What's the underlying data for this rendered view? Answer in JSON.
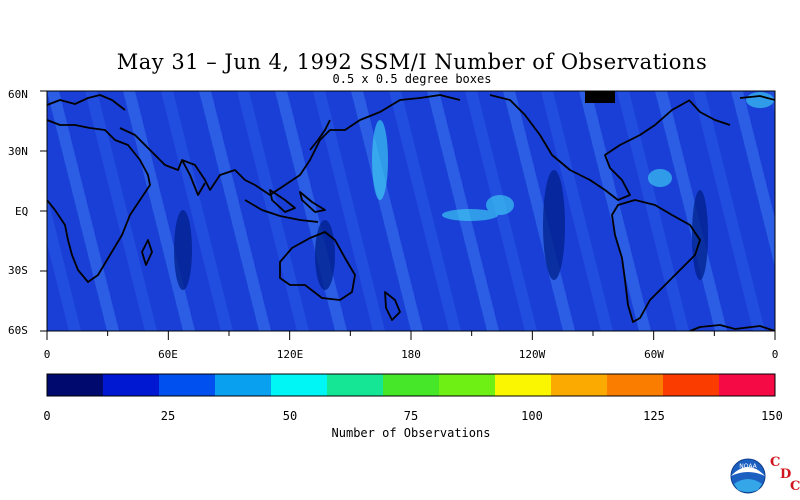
{
  "map": {
    "title": "May 31 – Jun 4, 1992 SSM/I Number of Observations",
    "subtitle": "0.5 x 0.5 degree boxes",
    "lat_labels": [
      "60N",
      "30N",
      "EQ",
      "30S",
      "60S"
    ],
    "lon_labels": [
      "0",
      "60E",
      "120E",
      "180",
      "120W",
      "60W",
      "0"
    ],
    "lat_range": [
      -60,
      60
    ],
    "lon_range": [
      0,
      360
    ],
    "background_color": "#1a3fd6"
  },
  "colorbar": {
    "label": "Number of Observations",
    "tick_labels": [
      "0",
      "25",
      "50",
      "75",
      "100",
      "125",
      "150"
    ],
    "range": [
      0,
      150
    ],
    "colors": [
      "#000a6e",
      "#0018d2",
      "#0050f0",
      "#0aa0f0",
      "#00f5f5",
      "#14e696",
      "#46e628",
      "#6ef014",
      "#faf500",
      "#faaa00",
      "#fa7d00",
      "#fa3c00",
      "#f50a46"
    ]
  },
  "logos": {
    "noaa_text": "NOAA",
    "cdc_letters": [
      "C",
      "D",
      "C"
    ]
  }
}
